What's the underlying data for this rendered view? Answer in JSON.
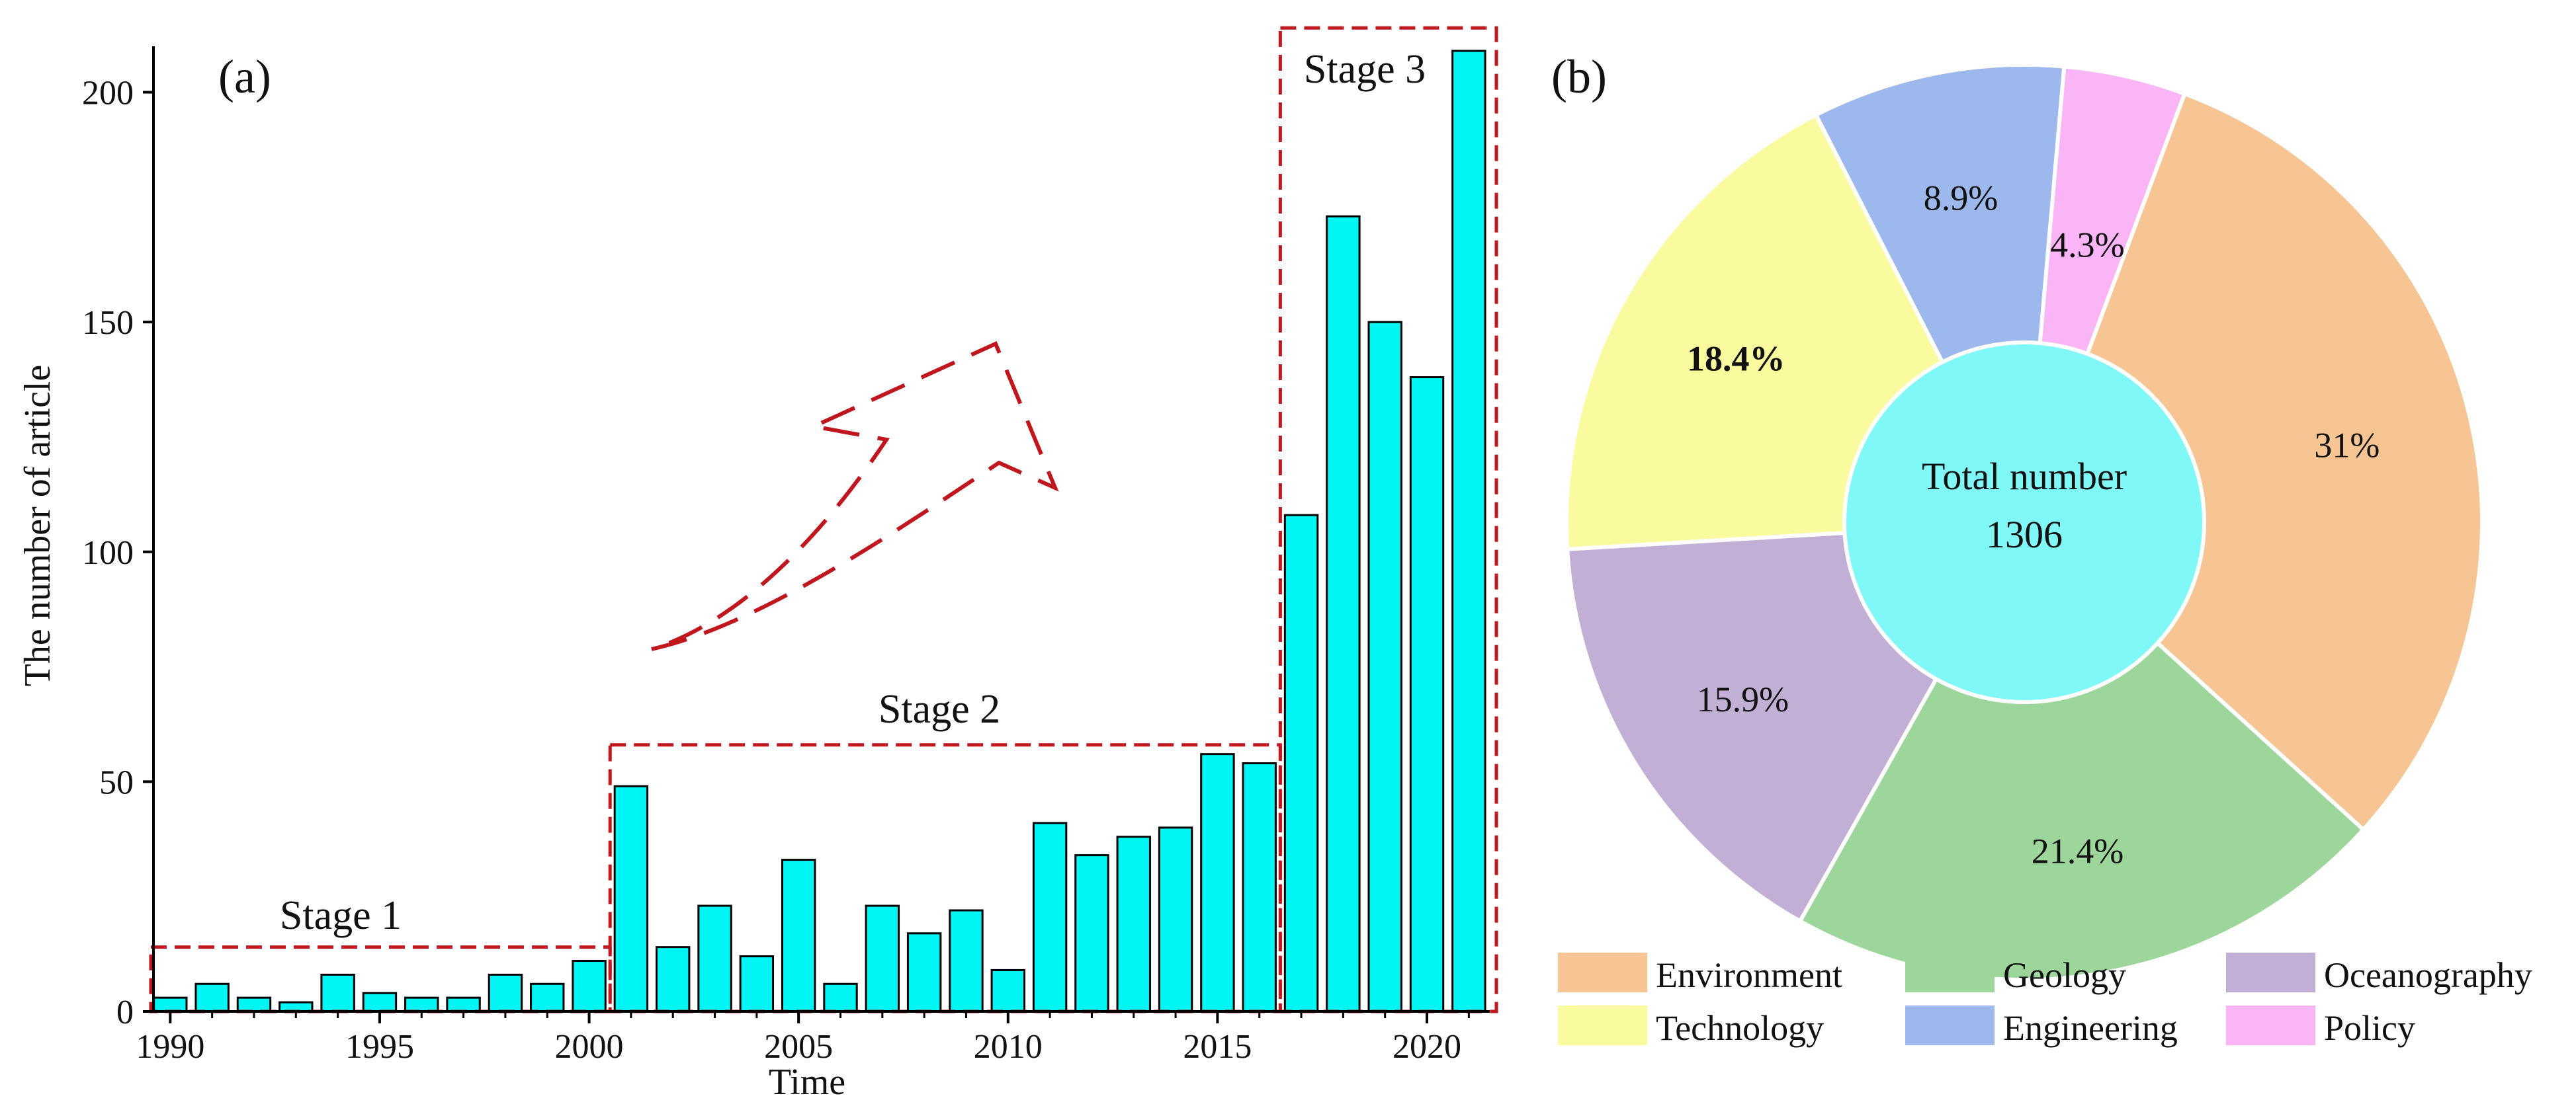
{
  "chart_data": [
    {
      "panel_label": "(a)",
      "type": "bar",
      "xlabel": "Time",
      "ylabel": "The number of article",
      "ylim": [
        0,
        210
      ],
      "xlim": [
        1989.6,
        2021.5
      ],
      "x_ticks": [
        1990,
        1995,
        2000,
        2005,
        2010,
        2015,
        2020
      ],
      "y_ticks": [
        0,
        50,
        100,
        150,
        200
      ],
      "series": [
        {
          "name": "articles",
          "x": [
            1990,
            1991,
            1992,
            1993,
            1994,
            1995,
            1996,
            1997,
            1998,
            1999,
            2000,
            2001,
            2002,
            2003,
            2004,
            2005,
            2006,
            2007,
            2008,
            2009,
            2010,
            2011,
            2012,
            2013,
            2014,
            2015,
            2016,
            2017,
            2018,
            2019,
            2020,
            2021
          ],
          "values": [
            3,
            6,
            3,
            2,
            8,
            4,
            3,
            3,
            8,
            6,
            11,
            49,
            14,
            23,
            12,
            33,
            6,
            23,
            17,
            22,
            9,
            41,
            34,
            38,
            40,
            56,
            54,
            108,
            173,
            150,
            138,
            209
          ]
        }
      ],
      "bar_color": "#00f5f5",
      "annotations": {
        "stage_color": "#c0171f",
        "stages": [
          {
            "label": "Stage 1",
            "x_from": 1989.6,
            "x_to": 2000.5,
            "y_top": 14
          },
          {
            "label": "Stage 2",
            "x_from": 2000.5,
            "x_to": 2016.5,
            "y_top": 58
          },
          {
            "label": "Stage 3",
            "x_from": 2016.5,
            "x_to": 2021.5,
            "y_top": 214
          }
        ]
      }
    },
    {
      "panel_label": "(b)",
      "type": "pie",
      "center_text": {
        "line1": "Total number",
        "line2": "1306"
      },
      "center_color": "#80f8f8",
      "slices": [
        {
          "name": "Environment",
          "value": 31.0,
          "label": "31%",
          "color": "#f7c594",
          "bold": false
        },
        {
          "name": "Geology",
          "value": 21.4,
          "label": "21.4%",
          "color": "#9dd69a",
          "bold": false
        },
        {
          "name": "Oceanography",
          "value": 15.9,
          "label": "15.9%",
          "color": "#c1afd6",
          "bold": false
        },
        {
          "name": "Technology",
          "value": 18.4,
          "label": "18.4%",
          "color": "#fafa9e",
          "bold": true
        },
        {
          "name": "Engineering",
          "value": 8.9,
          "label": "8.9%",
          "color": "#9cb8ec",
          "bold": false
        },
        {
          "name": "Policy",
          "value": 4.3,
          "label": "4.3%",
          "color": "#f9b5f5",
          "bold": false
        }
      ],
      "legend": [
        "Environment",
        "Geology",
        "Oceanography",
        "Technology",
        "Engineering",
        "Policy"
      ],
      "legend_position": "bottom"
    }
  ]
}
